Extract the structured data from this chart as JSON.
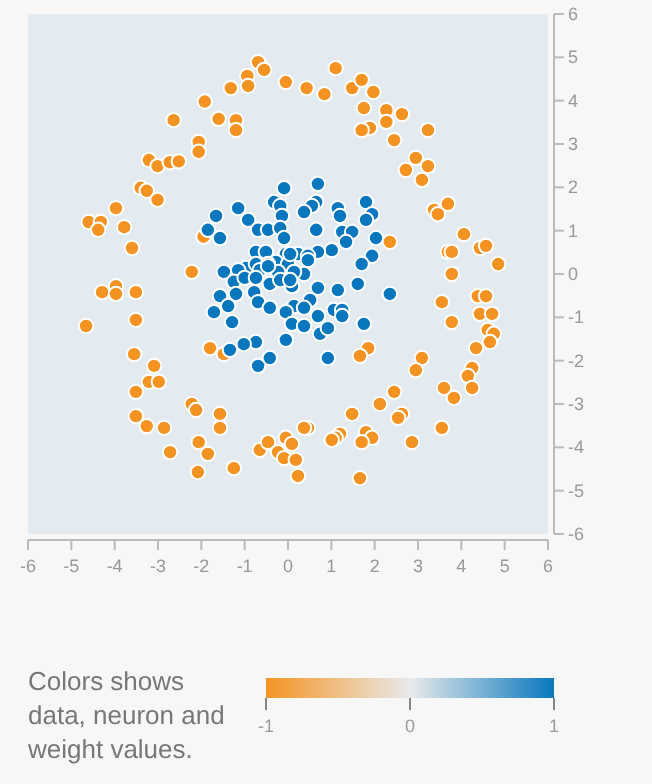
{
  "chart_data": {
    "type": "scatter",
    "clabel": "Colors shows data, neuron and weight values.",
    "xlim": [
      -6,
      6
    ],
    "ylim": [
      -6,
      6
    ],
    "xticks": [
      -6,
      -5,
      -4,
      -3,
      -2,
      -1,
      0,
      1,
      2,
      3,
      4,
      5,
      6
    ],
    "yticks": [
      -6,
      -5,
      -4,
      -3,
      -2,
      -1,
      0,
      1,
      2,
      3,
      4,
      5,
      6
    ],
    "clim": [
      -1,
      1
    ],
    "cticks": [
      -1,
      0,
      1
    ],
    "marker": "circle",
    "grid": false,
    "series": [
      {
        "x": [
          -0.69,
          -0.55,
          -0.94,
          -0.92,
          -0.05,
          -1.32,
          -1.92,
          -1.6,
          -1.2,
          -1.2,
          -2.64,
          -2.06,
          -2.06,
          -3.21,
          -3.01,
          -2.73,
          -2.52,
          -3.4,
          -3.26,
          -3.01,
          -3.97,
          -4.6,
          -4.32,
          -4.38,
          -3.78,
          -3.6,
          -1.95,
          -2.22,
          0.43,
          0.84,
          1.1,
          1.48,
          1.7,
          1.97,
          1.75,
          2.27,
          2.63,
          2.27,
          1.89,
          1.7,
          2.45,
          3.23,
          2.95,
          2.72,
          3.23,
          3.09,
          3.69,
          3.37,
          3.46,
          4.06,
          2.35,
          3.69,
          3.78,
          4.43,
          4.57,
          4.85,
          3.78,
          -4.29,
          -3.97,
          -3.97,
          -3.51,
          -4.66,
          -3.51,
          -3.55,
          -3.09,
          -3.21,
          -2.98,
          -3.51,
          -3.51,
          -3.26,
          -2.86,
          -2.72,
          -2.22,
          -2.12,
          -1.57,
          -1.57,
          -2.06,
          -1.85,
          -2.08,
          -1.25,
          -1.8,
          -1.48,
          -0.65,
          -0.46,
          -0.23,
          -0.05,
          -0.09,
          0.23,
          4.38,
          4.57,
          3.55,
          4.43,
          4.71,
          3.78,
          4.61,
          4.75,
          4.66,
          4.34,
          1.85,
          1.66,
          3.09,
          2.95,
          4.25,
          4.15,
          3.6,
          4.25,
          3.83,
          2.45,
          2.12,
          1.48,
          2.63,
          2.54,
          3.55,
          0.46,
          0.37,
          1.8,
          1.2,
          1.94,
          1.7,
          1.1,
          1.01,
          2.86,
          0.09,
          0.18,
          1.66,
          -0.09,
          -0.32,
          -0.18,
          -0.14,
          -1.15,
          -1.66,
          -0.92,
          -0.69,
          -0.46,
          -0.18,
          -1.85,
          -1.57,
          -0.09,
          -0.74,
          -0.51,
          -0.05,
          0.23,
          -0.28,
          0,
          -0.97,
          -0.74,
          -0.46,
          -1.48,
          -1.15,
          -0.23,
          0.69,
          0.65,
          0.55,
          0.37,
          1.15,
          1.2,
          1.8,
          1.94,
          1.8,
          0.65,
          1.25,
          1.48,
          2.03,
          1.34,
          1.01,
          0.69,
          0.46,
          0.05,
          1.94,
          1.7,
          0.37,
          0.14,
          -0.65,
          -0.46,
          -1.25,
          -1.0,
          -0.74,
          -0.42,
          -0.18,
          0.09,
          -1.57,
          -1.2,
          -0.78,
          -0.69,
          0.14,
          -1.38,
          -1.71,
          -0.42,
          -0.05,
          -1.29,
          0.09,
          -0.05,
          -0.74,
          -1.02,
          -1.34,
          -0.42,
          -0.69,
          0.46,
          0.05,
          0.69,
          1.15,
          1.61,
          2.35,
          0.51,
          0.37,
          0.69,
          1.06,
          1.25,
          1.25,
          0.37,
          0.74,
          0.92,
          1.75,
          0.92
        ],
        "values": [
          4.89,
          4.71,
          4.57,
          4.34,
          4.43,
          4.29,
          3.98,
          3.58,
          3.55,
          3.32,
          3.55,
          3.05,
          2.82,
          2.63,
          2.49,
          2.58,
          2.6,
          1.99,
          1.92,
          1.71,
          1.52,
          1.2,
          1.2,
          1.02,
          1.08,
          0.6,
          0.86,
          0.05,
          4.29,
          4.15,
          4.75,
          4.29,
          4.48,
          4.2,
          3.83,
          3.78,
          3.69,
          3.51,
          3.37,
          3.32,
          3.09,
          3.32,
          2.68,
          2.4,
          2.49,
          2.17,
          1.62,
          1.48,
          1.38,
          0.92,
          0.74,
          0.51,
          0.51,
          0.6,
          0.65,
          0.23,
          0,
          -0.42,
          -0.28,
          -0.46,
          -0.42,
          -1.2,
          -1.06,
          -1.85,
          -2.12,
          -2.49,
          -2.49,
          -2.72,
          -3.28,
          -3.51,
          -3.55,
          -4.11,
          -3,
          -3.14,
          -3.23,
          -3.55,
          -3.88,
          -4.15,
          -4.57,
          -4.48,
          -1.71,
          -1.85,
          -4.06,
          -3.88,
          -4.11,
          -3.78,
          -4.25,
          -4.66,
          -0.51,
          -0.51,
          -0.65,
          -0.92,
          -0.92,
          -1.11,
          -1.29,
          -1.38,
          -1.57,
          -1.71,
          -1.71,
          -1.89,
          -1.94,
          -2.22,
          -2.17,
          -2.35,
          -2.63,
          -2.63,
          -2.86,
          -2.72,
          -3,
          -3.23,
          -3.23,
          -3.32,
          -3.55,
          -3.55,
          -3.55,
          -3.65,
          -3.69,
          -3.78,
          -3.88,
          -3.78,
          -3.83,
          -3.88,
          -3.92,
          -4.29,
          -4.71,
          1.98,
          1.66,
          1.57,
          1.34,
          1.52,
          1.34,
          1.25,
          1.02,
          1.02,
          1.06,
          1.02,
          0.83,
          0.83,
          0.51,
          0.51,
          0.46,
          0.46,
          0.28,
          0.23,
          0.14,
          0.23,
          0.23,
          0.05,
          0.09,
          0.05,
          2.08,
          1.66,
          1.57,
          1.43,
          1.52,
          1.34,
          1.66,
          1.38,
          1.25,
          1.02,
          0.97,
          0.97,
          0.83,
          0.74,
          0.55,
          0.51,
          0.42,
          0.46,
          0.42,
          0.23,
          0,
          0.05,
          0.09,
          0.18,
          -0.18,
          -0.09,
          -0.09,
          -0.23,
          -0.14,
          -0.28,
          -0.51,
          -0.46,
          -0.42,
          -0.65,
          -0.74,
          -0.74,
          -0.88,
          -0.78,
          -0.88,
          -1.11,
          -1.15,
          -1.52,
          -1.57,
          -1.62,
          -1.75,
          -1.94,
          -2.12,
          0.32,
          -0.14,
          -0.32,
          -0.37,
          -0.23,
          -0.46,
          -0.6,
          -0.78,
          -0.97,
          -0.83,
          -0.83,
          -0.97,
          -1.2,
          -1.38,
          -1.25,
          -1.15,
          -1.94
        ],
        "cvalues": [
          -1,
          -1,
          -1,
          -1,
          -1,
          -1,
          -1,
          -1,
          -1,
          -1,
          -1,
          -1,
          -1,
          -1,
          -1,
          -1,
          -1,
          -1,
          -1,
          -1,
          -1,
          -1,
          -1,
          -1,
          -1,
          -1,
          -1,
          -1,
          -1,
          -1,
          -1,
          -1,
          -1,
          -1,
          -1,
          -1,
          -1,
          -1,
          -1,
          -1,
          -1,
          -1,
          -1,
          -1,
          -1,
          -1,
          -1,
          -1,
          -1,
          -1,
          -1,
          -1,
          -1,
          -1,
          -1,
          -1,
          -1,
          -1,
          -1,
          -1,
          -1,
          -1,
          -1,
          -1,
          -1,
          -1,
          -1,
          -1,
          -1,
          -1,
          -1,
          -1,
          -1,
          -1,
          -1,
          -1,
          -1,
          -1,
          -1,
          -1,
          -1,
          -1,
          -1,
          -1,
          -1,
          -1,
          -1,
          -1,
          -1,
          -1,
          -1,
          -1,
          -1,
          -1,
          -1,
          -1,
          -1,
          -1,
          -1,
          -1,
          -1,
          -1,
          -1,
          -1,
          -1,
          -1,
          -1,
          -1,
          -1,
          -1,
          -1,
          -1,
          -1,
          -1,
          -1,
          -1,
          -1,
          -1,
          -1,
          -1,
          -1,
          -1,
          -1,
          -1,
          -1,
          1,
          1,
          1,
          1,
          1,
          1,
          1,
          1,
          1,
          1,
          1,
          1,
          1,
          1,
          1,
          1,
          1,
          1,
          1,
          1,
          1,
          1,
          1,
          1,
          1,
          1,
          1,
          1,
          1,
          1,
          1,
          1,
          1,
          1,
          1,
          1,
          1,
          1,
          1,
          1,
          1,
          1,
          1,
          1,
          1,
          1,
          1,
          1,
          1,
          1,
          1,
          1,
          1,
          1,
          1,
          1,
          1,
          1,
          1,
          1,
          1,
          1,
          1,
          1,
          1,
          1,
          1,
          1,
          1,
          1,
          1,
          1,
          1,
          1,
          1,
          1,
          1,
          1,
          1,
          1,
          1,
          1,
          1,
          1,
          1,
          1,
          1,
          1,
          1
        ]
      }
    ]
  }
}
